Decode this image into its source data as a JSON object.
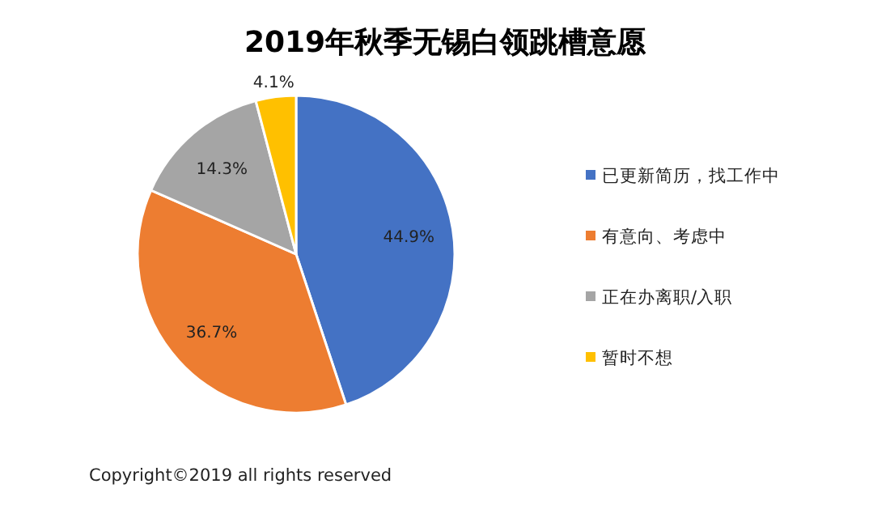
{
  "chart_data": {
    "type": "pie",
    "title": "2019年秋季无锡白领跳槽意愿",
    "categories": [
      "已更新简历，找工作中",
      "有意向、考虑中",
      "正在办离职/入职",
      "暂时不想"
    ],
    "values": [
      44.9,
      36.7,
      14.3,
      4.1
    ],
    "colors": [
      "#4472c4",
      "#ed7d31",
      "#a5a5a5",
      "#ffc000"
    ],
    "value_labels": [
      "44.9%",
      "36.7%",
      "14.3%",
      "4.1%"
    ],
    "legend": "right",
    "annotations": [
      "Copyright©2019 all rights reserved"
    ]
  }
}
